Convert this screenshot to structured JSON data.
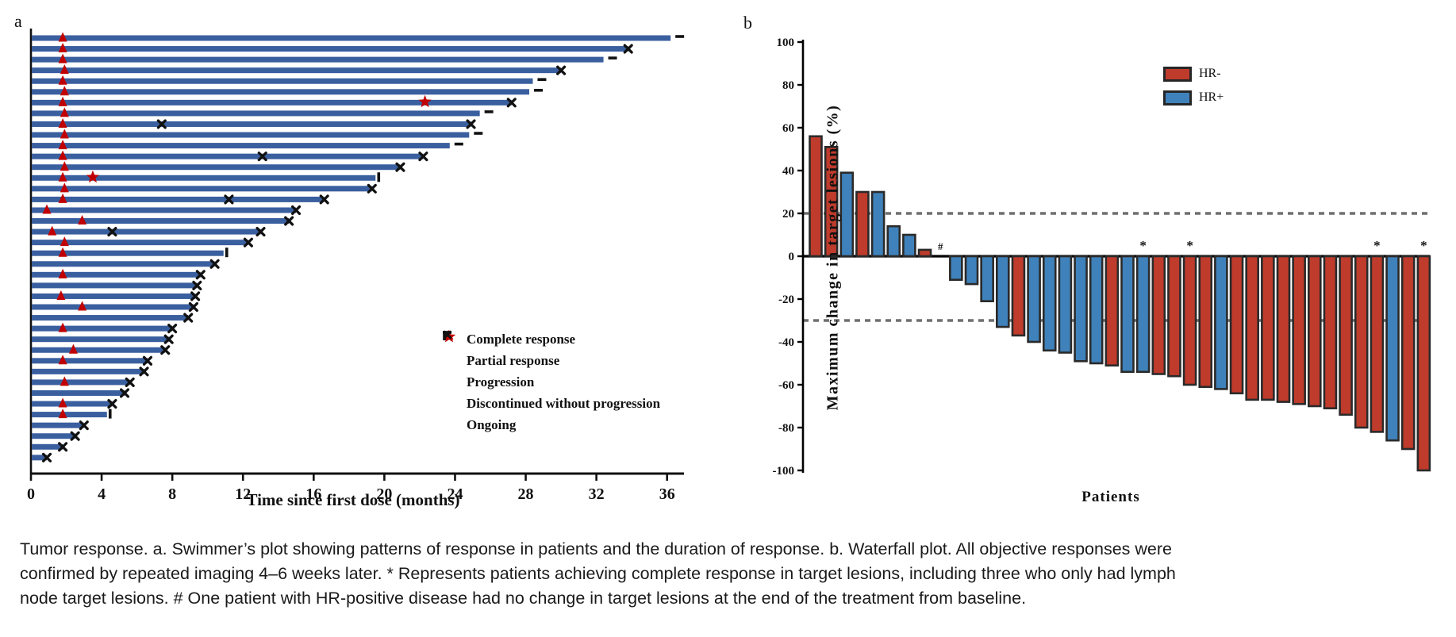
{
  "figure": {
    "panel_a_letter": "a",
    "panel_b_letter": "b"
  },
  "panel_a": {
    "xlabel": "Time since first dose (months)",
    "legend": [
      {
        "icon": "star-icon",
        "label": "Complete response"
      },
      {
        "icon": "triangle-icon",
        "label": "Partial response"
      },
      {
        "icon": "x-icon",
        "label": "Progression"
      },
      {
        "icon": "vbar-icon",
        "label": "Discontinued without progression"
      },
      {
        "icon": "dash-icon",
        "label": "Ongoing"
      }
    ]
  },
  "panel_b": {
    "xlabel": "Patients",
    "ylabel": "Maximum change in target lesions (%)",
    "legend": [
      {
        "label": "HR-",
        "color": "#bf3b2b"
      },
      {
        "label": "HR+",
        "color": "#3f81ba"
      }
    ]
  },
  "caption": {
    "line1": "Tumor response. a. Swimmer’s plot showing patterns of response in patients and the duration of response. b. Waterfall plot. All objective responses were",
    "line2": "confirmed by repeated imaging 4–6 weeks later. * Represents patients achieving complete response in target lesions, including three who only had lymph",
    "line3": "node target lesions. # One patient with HR-positive disease had no change in target lesions at the end of the treatment from baseline."
  },
  "chart_data": [
    {
      "type": "swimmer",
      "xlabel": "Time since first dose (months)",
      "x_ticks": [
        0,
        4,
        8,
        12,
        16,
        20,
        24,
        28,
        32,
        36
      ],
      "x_range": [
        0,
        36.9
      ],
      "bar_color": "#3a5f9f",
      "marker_red": "#c00000",
      "marker_black": "#111111",
      "legend_note": "end codes: progression=X at end, ongoing=dash after end, discontinued=vertical bar after end",
      "rows": [
        {
          "months": 36.2,
          "pr": [
            1.8
          ],
          "cr": [],
          "prog_mid": [],
          "end": "ongoing"
        },
        {
          "months": 33.8,
          "pr": [
            1.8
          ],
          "cr": [],
          "prog_mid": [],
          "end": "progression"
        },
        {
          "months": 32.4,
          "pr": [
            1.8
          ],
          "cr": [],
          "prog_mid": [],
          "end": "ongoing"
        },
        {
          "months": 30.0,
          "pr": [
            1.9
          ],
          "cr": [],
          "prog_mid": [],
          "end": "progression"
        },
        {
          "months": 28.4,
          "pr": [
            1.8
          ],
          "cr": [],
          "prog_mid": [],
          "end": "ongoing"
        },
        {
          "months": 28.2,
          "pr": [
            1.9
          ],
          "cr": [],
          "prog_mid": [],
          "end": "ongoing"
        },
        {
          "months": 27.2,
          "pr": [
            1.8
          ],
          "cr": [
            22.3
          ],
          "prog_mid": [],
          "end": "progression"
        },
        {
          "months": 25.4,
          "pr": [
            1.9
          ],
          "cr": [],
          "prog_mid": [],
          "end": "ongoing"
        },
        {
          "months": 24.9,
          "pr": [
            1.8
          ],
          "cr": [],
          "prog_mid": [
            7.4
          ],
          "end": "progression"
        },
        {
          "months": 24.8,
          "pr": [
            1.9
          ],
          "cr": [],
          "prog_mid": [],
          "end": "ongoing"
        },
        {
          "months": 23.7,
          "pr": [
            1.8
          ],
          "cr": [],
          "prog_mid": [],
          "end": "ongoing"
        },
        {
          "months": 22.2,
          "pr": [
            1.8
          ],
          "cr": [],
          "prog_mid": [
            13.1
          ],
          "end": "progression"
        },
        {
          "months": 20.9,
          "pr": [
            1.9
          ],
          "cr": [],
          "prog_mid": [],
          "end": "progression"
        },
        {
          "months": 19.5,
          "pr": [
            1.8
          ],
          "cr": [
            3.5
          ],
          "prog_mid": [],
          "end": "discontinued"
        },
        {
          "months": 19.3,
          "pr": [
            1.9
          ],
          "cr": [],
          "prog_mid": [],
          "end": "progression"
        },
        {
          "months": 16.6,
          "pr": [
            1.8
          ],
          "cr": [],
          "prog_mid": [
            11.2
          ],
          "end": "progression"
        },
        {
          "months": 15.0,
          "pr": [
            0.9
          ],
          "cr": [],
          "prog_mid": [],
          "end": "progression"
        },
        {
          "months": 14.6,
          "pr": [
            2.9
          ],
          "cr": [],
          "prog_mid": [],
          "end": "progression"
        },
        {
          "months": 13.0,
          "pr": [
            1.2
          ],
          "cr": [],
          "prog_mid": [
            4.6
          ],
          "end": "progression"
        },
        {
          "months": 12.3,
          "pr": [
            1.9
          ],
          "cr": [],
          "prog_mid": [],
          "end": "progression"
        },
        {
          "months": 10.9,
          "pr": [
            1.8
          ],
          "cr": [],
          "prog_mid": [],
          "end": "discontinued"
        },
        {
          "months": 10.4,
          "pr": [],
          "cr": [],
          "prog_mid": [],
          "end": "progression"
        },
        {
          "months": 9.6,
          "pr": [
            1.8
          ],
          "cr": [],
          "prog_mid": [],
          "end": "progression"
        },
        {
          "months": 9.4,
          "pr": [],
          "cr": [],
          "prog_mid": [],
          "end": "progression"
        },
        {
          "months": 9.3,
          "pr": [
            1.7
          ],
          "cr": [],
          "prog_mid": [],
          "end": "progression"
        },
        {
          "months": 9.2,
          "pr": [
            2.9
          ],
          "cr": [],
          "prog_mid": [],
          "end": "progression"
        },
        {
          "months": 8.9,
          "pr": [],
          "cr": [],
          "prog_mid": [],
          "end": "progression"
        },
        {
          "months": 8.0,
          "pr": [
            1.8
          ],
          "cr": [],
          "prog_mid": [],
          "end": "progression"
        },
        {
          "months": 7.8,
          "pr": [],
          "cr": [],
          "prog_mid": [],
          "end": "progression"
        },
        {
          "months": 7.6,
          "pr": [
            2.4
          ],
          "cr": [],
          "prog_mid": [],
          "end": "progression"
        },
        {
          "months": 6.6,
          "pr": [
            1.8
          ],
          "cr": [],
          "prog_mid": [],
          "end": "progression"
        },
        {
          "months": 6.4,
          "pr": [],
          "cr": [],
          "prog_mid": [],
          "end": "progression"
        },
        {
          "months": 5.6,
          "pr": [
            1.9
          ],
          "cr": [],
          "prog_mid": [],
          "end": "progression"
        },
        {
          "months": 5.3,
          "pr": [],
          "cr": [],
          "prog_mid": [],
          "end": "progression"
        },
        {
          "months": 4.6,
          "pr": [
            1.8
          ],
          "cr": [],
          "prog_mid": [],
          "end": "progression"
        },
        {
          "months": 4.3,
          "pr": [
            1.8
          ],
          "cr": [],
          "prog_mid": [],
          "end": "discontinued"
        },
        {
          "months": 3.0,
          "pr": [],
          "cr": [],
          "prog_mid": [],
          "end": "progression"
        },
        {
          "months": 2.5,
          "pr": [],
          "cr": [],
          "prog_mid": [],
          "end": "progression"
        },
        {
          "months": 1.8,
          "pr": [],
          "cr": [],
          "prog_mid": [],
          "end": "progression"
        },
        {
          "months": 0.9,
          "pr": [],
          "cr": [],
          "prog_mid": [],
          "end": "progression"
        }
      ]
    },
    {
      "type": "waterfall-bar",
      "xlabel": "Patients",
      "ylabel": "Maximum change in target lesions (%)",
      "ylim": [
        -100,
        100
      ],
      "y_ticks": [
        100,
        80,
        60,
        40,
        20,
        0,
        -20,
        -40,
        -60,
        -80,
        -100
      ],
      "reference_lines": [
        20,
        -30
      ],
      "colors": {
        "HR-": "#bf3b2b",
        "HR+": "#3f81ba",
        "outline": "#2a2a2a",
        "dashed": "#6f6f6f"
      },
      "annotation_star": "*",
      "annotation_hash": "#",
      "patients": [
        {
          "value": 56,
          "group": "HR-"
        },
        {
          "value": 51,
          "group": "HR-"
        },
        {
          "value": 39,
          "group": "HR+"
        },
        {
          "value": 30,
          "group": "HR-"
        },
        {
          "value": 30,
          "group": "HR+"
        },
        {
          "value": 14,
          "group": "HR+"
        },
        {
          "value": 10,
          "group": "HR+"
        },
        {
          "value": 3,
          "group": "HR-"
        },
        {
          "value": 0,
          "group": "HR+",
          "symbol": "#"
        },
        {
          "value": -11,
          "group": "HR+"
        },
        {
          "value": -13,
          "group": "HR+"
        },
        {
          "value": -21,
          "group": "HR+"
        },
        {
          "value": -33,
          "group": "HR+"
        },
        {
          "value": -37,
          "group": "HR-"
        },
        {
          "value": -40,
          "group": "HR+"
        },
        {
          "value": -44,
          "group": "HR+"
        },
        {
          "value": -45,
          "group": "HR+"
        },
        {
          "value": -49,
          "group": "HR+"
        },
        {
          "value": -50,
          "group": "HR+"
        },
        {
          "value": -51,
          "group": "HR-"
        },
        {
          "value": -54,
          "group": "HR+"
        },
        {
          "value": -54,
          "group": "HR+",
          "symbol": "*"
        },
        {
          "value": -55,
          "group": "HR-"
        },
        {
          "value": -56,
          "group": "HR-"
        },
        {
          "value": -60,
          "group": "HR-",
          "symbol": "*"
        },
        {
          "value": -61,
          "group": "HR-"
        },
        {
          "value": -62,
          "group": "HR+"
        },
        {
          "value": -64,
          "group": "HR-"
        },
        {
          "value": -67,
          "group": "HR-"
        },
        {
          "value": -67,
          "group": "HR-"
        },
        {
          "value": -68,
          "group": "HR-"
        },
        {
          "value": -69,
          "group": "HR-"
        },
        {
          "value": -70,
          "group": "HR-"
        },
        {
          "value": -71,
          "group": "HR-"
        },
        {
          "value": -74,
          "group": "HR-"
        },
        {
          "value": -80,
          "group": "HR-"
        },
        {
          "value": -82,
          "group": "HR-",
          "symbol": "*"
        },
        {
          "value": -86,
          "group": "HR+"
        },
        {
          "value": -90,
          "group": "HR-"
        },
        {
          "value": -100,
          "group": "HR-",
          "symbol": "*"
        }
      ]
    }
  ]
}
